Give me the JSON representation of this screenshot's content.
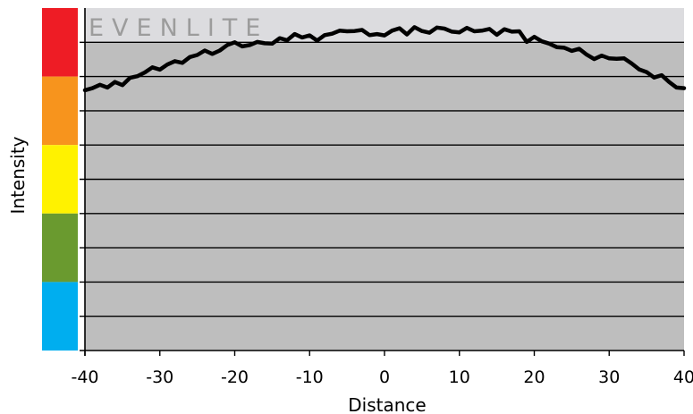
{
  "brand": "EVENLITE",
  "chart_data": {
    "type": "line",
    "xlabel": "Distance",
    "ylabel": "Intensity",
    "xlim": [
      -40,
      40
    ],
    "ylim": [
      0,
      100
    ],
    "x_ticks": [
      -40,
      -30,
      -20,
      -10,
      0,
      10,
      20,
      30,
      40
    ],
    "x_tick_labels": [
      "-40",
      "-30",
      "-20",
      "-10",
      "0",
      "10",
      "20",
      "30",
      "40"
    ],
    "y_gridlines": [
      10,
      20,
      30,
      40,
      50,
      60,
      70,
      80,
      90
    ],
    "highlight_band": {
      "from": 90,
      "to": 100,
      "color": "#dcdcdf"
    },
    "plot_background": "#bebebe",
    "line_color": "#000000",
    "grid": true,
    "intensity_scale": [
      {
        "from": 80,
        "to": 100,
        "color": "#ee1c25"
      },
      {
        "from": 60,
        "to": 80,
        "color": "#f7941d"
      },
      {
        "from": 40,
        "to": 60,
        "color": "#fff200"
      },
      {
        "from": 20,
        "to": 40,
        "color": "#6a9a2f"
      },
      {
        "from": 0,
        "to": 20,
        "color": "#00aeef"
      }
    ],
    "series": [
      {
        "x": [
          -40,
          -39,
          -38,
          -37,
          -36,
          -35,
          -34,
          -33,
          -32,
          -31,
          -30,
          -29,
          -28,
          -27,
          -26,
          -25,
          -24,
          -23,
          -22,
          -21,
          -20,
          -19,
          -18,
          -17,
          -16,
          -15,
          -14,
          -13,
          -12,
          -11,
          -10,
          -9,
          -8,
          -7,
          -6,
          -5,
          -4,
          -3,
          -2,
          -1,
          0,
          1,
          2,
          3,
          4,
          5,
          6,
          7,
          8,
          9,
          10,
          11,
          12,
          13,
          14,
          15,
          16,
          17,
          18,
          19,
          20,
          21,
          22,
          23,
          24,
          25,
          26,
          27,
          28,
          29,
          30,
          31,
          32,
          33,
          34,
          35,
          36,
          37,
          38,
          39,
          40
        ],
        "values": [
          76,
          76.6,
          77.6,
          76.8,
          78.4,
          77.5,
          79.6,
          80.1,
          81.2,
          82.7,
          82,
          83.5,
          84.5,
          84,
          85.7,
          86.3,
          87.6,
          86.6,
          87.6,
          89.2,
          90,
          88.8,
          89.2,
          90.1,
          89.7,
          89.6,
          91.2,
          90.6,
          92.4,
          91.4,
          92,
          90.5,
          92.1,
          92.5,
          93.4,
          93.2,
          93.3,
          93.6,
          92.1,
          92.4,
          92,
          93.4,
          94.1,
          92.3,
          94.4,
          93.3,
          92.8,
          94.3,
          94,
          93.1,
          92.9,
          94.2,
          93.2,
          93.4,
          93.9,
          92.2,
          93.8,
          93.1,
          93.2,
          90.1,
          91.6,
          90.3,
          89.6,
          88.6,
          88.4,
          87.5,
          88.1,
          86.4,
          85.1,
          86.1,
          85.3,
          85.2,
          85.3,
          83.8,
          82.1,
          81.3,
          79.7,
          80.4,
          78.4,
          76.8,
          76.6
        ]
      }
    ]
  }
}
